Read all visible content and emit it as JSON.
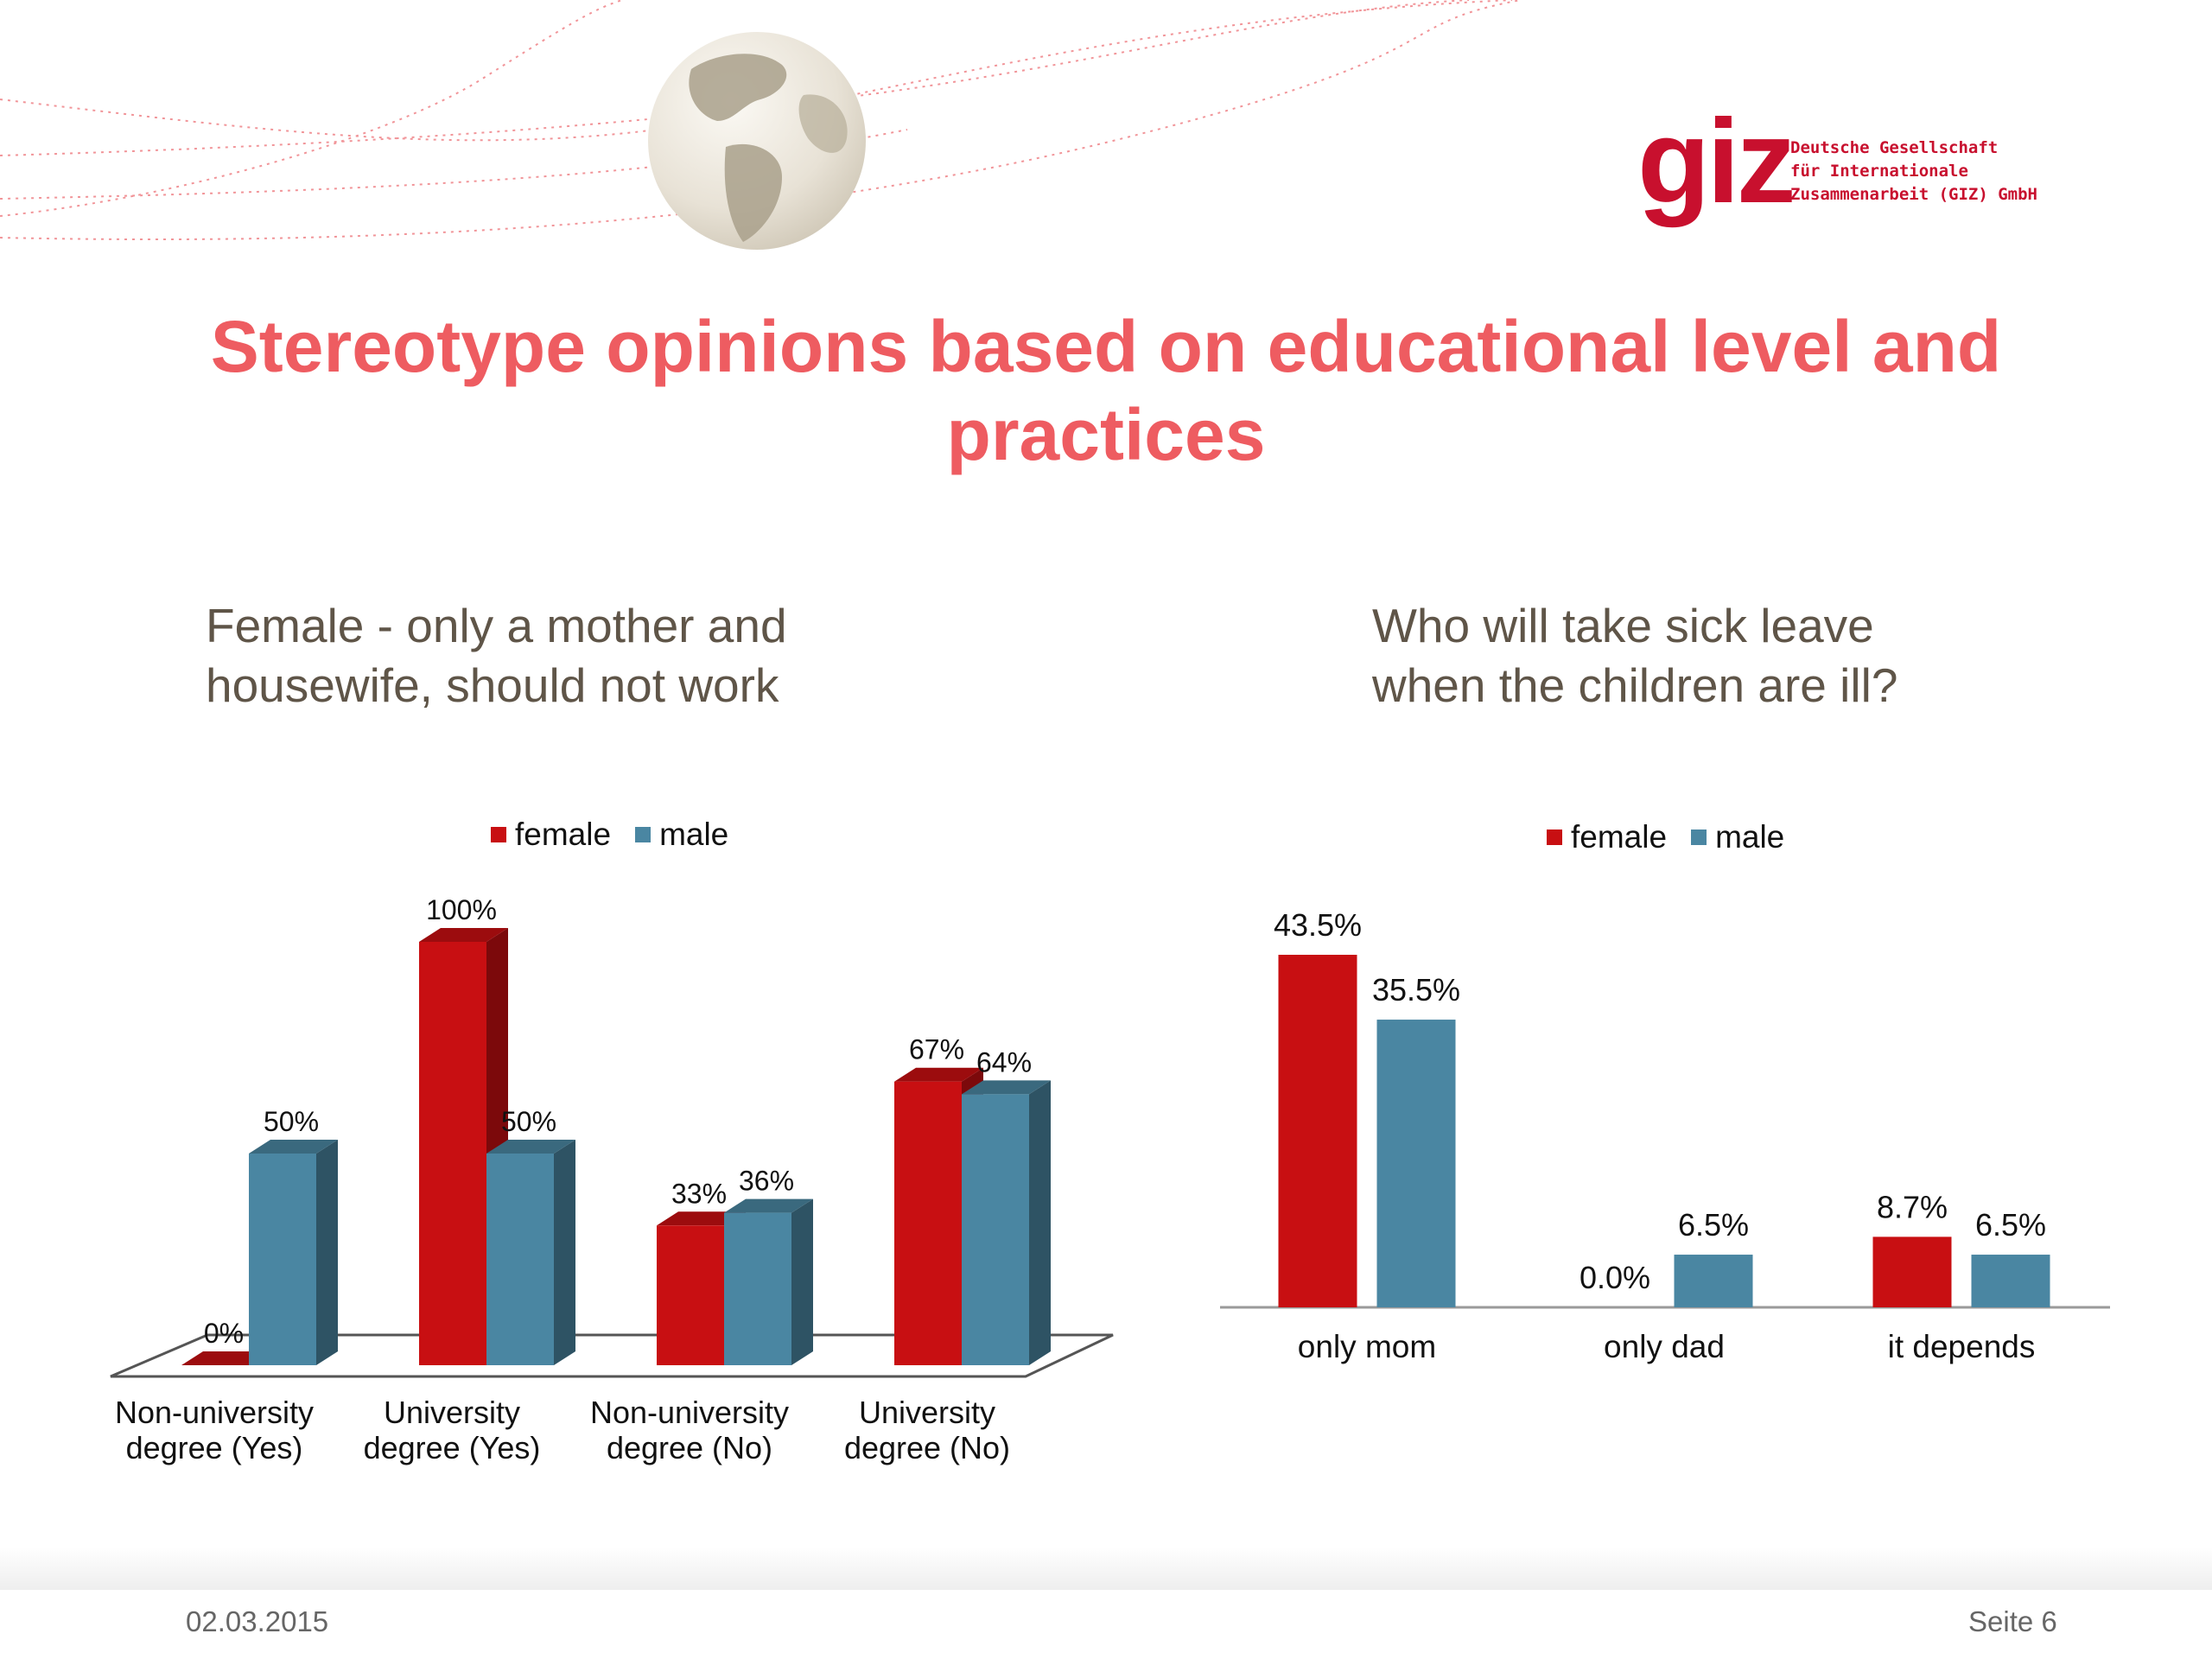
{
  "header": {
    "logo_word": "giz",
    "logo_tagline": [
      "Deutsche Gesellschaft",
      "für Internationale",
      "Zusammenarbeit (GIZ) GmbH"
    ]
  },
  "slide_title": "Stereotype opinions based on educational level and practices",
  "colors": {
    "female": "#c80f12",
    "male": "#4a86a2",
    "title": "#ee5c61",
    "logo": "#c8102e"
  },
  "chart_data": [
    {
      "type": "bar",
      "style": "3d",
      "title": "Female - only a mother and housewife, should not work",
      "categories": [
        "Non-university degree (Yes)",
        "University degree (Yes)",
        "Non-university degree (No)",
        "University degree (No)"
      ],
      "category_lines": [
        [
          "Non-university",
          "degree (Yes)"
        ],
        [
          "University",
          "degree (Yes)"
        ],
        [
          "Non-university",
          "degree (No)"
        ],
        [
          "University",
          "degree (No)"
        ]
      ],
      "series": [
        {
          "name": "female",
          "values": [
            0,
            100,
            33,
            67
          ],
          "labels": [
            "0%",
            "100%",
            "33%",
            "67%"
          ]
        },
        {
          "name": "male",
          "values": [
            50,
            50,
            36,
            64
          ],
          "labels": [
            "50%",
            "50%",
            "36%",
            "64%"
          ]
        }
      ],
      "ylim": [
        0,
        100
      ],
      "grid": false,
      "legend": "top"
    },
    {
      "type": "bar",
      "title": "Who will take sick leave when the children are ill?",
      "categories": [
        "only mom",
        "only dad",
        "it depends"
      ],
      "series": [
        {
          "name": "female",
          "values": [
            43.5,
            0.0,
            8.7
          ],
          "labels": [
            "43.5%",
            "0.0%",
            "8.7%"
          ]
        },
        {
          "name": "male",
          "values": [
            35.5,
            6.5,
            6.5
          ],
          "labels": [
            "35.5%",
            "6.5%",
            "6.5%"
          ]
        }
      ],
      "ylim": [
        0,
        43.5
      ],
      "grid": false,
      "legend": "top"
    }
  ],
  "footer": {
    "date": "02.03.2015",
    "page": "Seite 6"
  }
}
